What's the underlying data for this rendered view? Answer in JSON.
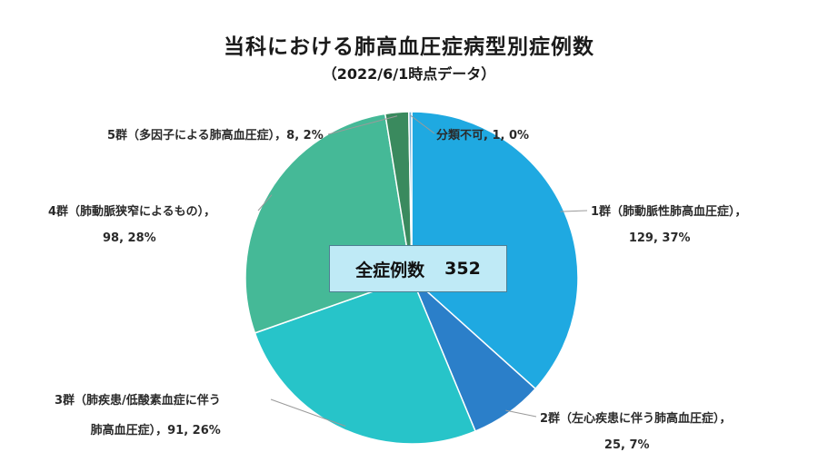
{
  "title": "当科における肺高血圧症病型別症例数",
  "subtitle": "（2022/6/1時点データ）",
  "chart_data": {
    "type": "pie",
    "title": "当科における肺高血圧症病型別症例数",
    "subtitle": "（2022/6/1時点データ）",
    "total_label": "全症例数",
    "total_value": "352",
    "slices": [
      {
        "name": "1群（肺動脈性肺高血圧症）",
        "value": 129,
        "percent": "37%",
        "color": "#1fa9e1",
        "label_lines": [
          "1群（肺動脈性肺高血圧症），",
          "129, 37%"
        ]
      },
      {
        "name": "2群（左心疾患に伴う肺高血圧症）",
        "value": 25,
        "percent": "7%",
        "color": "#2b7fc9",
        "label_lines": [
          "2群（左心疾患に伴う肺高血圧症），",
          "25, 7%"
        ]
      },
      {
        "name": "3群（肺疾患/低酸素血症に伴う肺高血圧症）",
        "value": 91,
        "percent": "26%",
        "color": "#27c4c9",
        "label_lines": [
          "3群（肺疾患/低酸素血症に伴う",
          "肺高血圧症），91, 26%"
        ]
      },
      {
        "name": "4群（肺動脈狭窄によるもの）",
        "value": 98,
        "percent": "28%",
        "color": "#45b997",
        "label_lines": [
          "4群（肺動脈狭窄によるもの），",
          "98, 28%"
        ]
      },
      {
        "name": "5群（多因子による肺高血圧症）",
        "value": 8,
        "percent": "2%",
        "color": "#3a8a5e",
        "label_lines": [
          "5群（多因子による肺高血圧症），8, 2%"
        ]
      },
      {
        "name": "分類不可",
        "value": 1,
        "percent": "0%",
        "color": "#6fb0d8",
        "label_lines": [
          "分類不可, 1, 0%"
        ]
      }
    ]
  }
}
